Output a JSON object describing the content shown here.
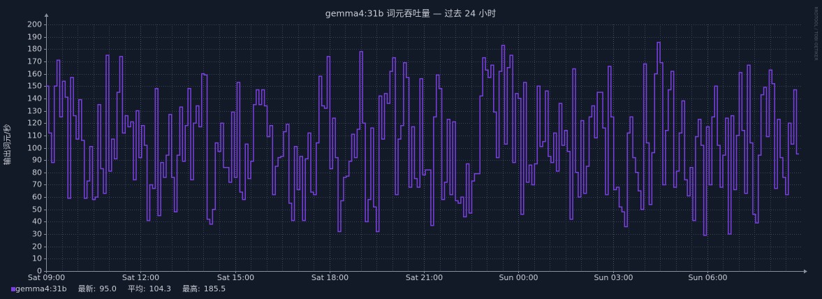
{
  "chart_data": {
    "type": "line",
    "title": "gemma4:31b 词元吞吐量 — 过去 24 小时",
    "y_label": "输出词元/秒",
    "watermark": "RRDTOOL / TOBI OETIKER",
    "xlim": [
      0,
      1440
    ],
    "xticks": [
      {
        "value": 0,
        "label": "Sat 09:00"
      },
      {
        "value": 180,
        "label": "Sat 12:00"
      },
      {
        "value": 360,
        "label": "Sat 15:00"
      },
      {
        "value": 540,
        "label": "Sat 18:00"
      },
      {
        "value": 720,
        "label": "Sat 21:00"
      },
      {
        "value": 900,
        "label": "Sun 00:00"
      },
      {
        "value": 1080,
        "label": "Sun 03:00"
      },
      {
        "value": 1260,
        "label": "Sun 06:00"
      }
    ],
    "ylim": [
      0,
      200
    ],
    "yticks": [
      0,
      10,
      20,
      30,
      40,
      50,
      60,
      70,
      80,
      90,
      100,
      110,
      120,
      130,
      140,
      150,
      160,
      170,
      180,
      190,
      200
    ],
    "grid": true,
    "step": true,
    "x": [
      0,
      5.2,
      10.4,
      15.6,
      20.8,
      26,
      31.2,
      36.4,
      41.6,
      46.8,
      52,
      57.2,
      62.4,
      67.6,
      72.8,
      78,
      83.2,
      88.4,
      93.6,
      98.8,
      104,
      109.2,
      114.4,
      119.6,
      124.8,
      130,
      135.2,
      140.4,
      145.6,
      150.8,
      156,
      161.2,
      166.4,
      171.6,
      176.8,
      182,
      187.2,
      192.4,
      197.6,
      202.8,
      208,
      213.2,
      218.4,
      223.6,
      228.8,
      234,
      239.2,
      244.4,
      249.6,
      254.8,
      260,
      265.2,
      270.4,
      275.6,
      280.8,
      286,
      291.2,
      296.4,
      301.6,
      306.8,
      312,
      317.2,
      322.4,
      327.6,
      332.8,
      338,
      343.2,
      348.4,
      353.6,
      358.8,
      364,
      369.2,
      374.4,
      379.6,
      384.8,
      390,
      395.2,
      400.4,
      405.6,
      410.8,
      416,
      421.2,
      426.4,
      431.6,
      436.8,
      442,
      447.2,
      452.4,
      457.6,
      462.8,
      468,
      473.2,
      478.4,
      483.6,
      488.8,
      494,
      499.2,
      504.4,
      509.6,
      514.8,
      520,
      525.2,
      530.4,
      535.6,
      540.8,
      546,
      551.2,
      556.4,
      561.6,
      566.8,
      572,
      577.2,
      582.4,
      587.6,
      592.8,
      598,
      603.2,
      608.4,
      613.6,
      618.8,
      624,
      629.2,
      634.4,
      639.6,
      644.8,
      650,
      655.2,
      660.4,
      665.6,
      670.8,
      676,
      681.2,
      686.4,
      691.6,
      696.8,
      702,
      707.2,
      712.4,
      717.6,
      722.8,
      728,
      733.2,
      738.4,
      743.6,
      748.8,
      754,
      759.2,
      764.4,
      769.6,
      774.8,
      780,
      785.2,
      790.4,
      795.6,
      800.8,
      806,
      811.2,
      816.4,
      821.6,
      826.8,
      832,
      837.2,
      842.4,
      847.6,
      852.8,
      858,
      863.2,
      868.4,
      873.6,
      878.8,
      884,
      889.2,
      894.4,
      899.6,
      904.8,
      910,
      915.2,
      920.4,
      925.6,
      930.8,
      936,
      941.2,
      946.4,
      951.6,
      956.8,
      962,
      967.2,
      972.4,
      977.6,
      982.8,
      988,
      993.2,
      998.4,
      1003.6,
      1008.8,
      1014,
      1019.2,
      1024.4,
      1029.6,
      1034.8,
      1040,
      1045.2,
      1050.4,
      1055.6,
      1060.8,
      1066,
      1071.2,
      1076.4,
      1081.6,
      1086.8,
      1092,
      1097.2,
      1102.4,
      1107.6,
      1112.8,
      1118,
      1123.2,
      1128.4,
      1133.6,
      1138.8,
      1144,
      1149.2,
      1154.4,
      1159.6,
      1164.8,
      1170,
      1175.2,
      1180.4,
      1185.6,
      1190.8,
      1196,
      1201.2,
      1206.4,
      1211.6,
      1216.8,
      1222,
      1227.2,
      1232.4,
      1237.6,
      1242.8,
      1248,
      1253.2,
      1258.4,
      1263.6,
      1268.8,
      1274,
      1279.2,
      1284.4,
      1289.6,
      1294.8,
      1300,
      1305.2,
      1310.4,
      1315.6,
      1320.8,
      1326,
      1331.2,
      1336.4,
      1341.6,
      1346.8,
      1352,
      1357.2,
      1362.4,
      1367.6,
      1372.8,
      1378,
      1383.2,
      1388.4,
      1393.6,
      1398.8,
      1404,
      1409.2,
      1414.4,
      1419.6,
      1424.8,
      1430
    ],
    "series": [
      {
        "name": "gemma4:31b",
        "color": "#7b3fe4",
        "values": [
          150,
          112,
          88,
          150,
          171,
          125,
          154,
          141,
          59,
          157,
          126,
          107,
          139,
          106,
          59,
          73,
          101,
          58,
          60,
          135,
          83,
          63,
          175,
          81,
          107,
          91,
          145,
          174,
          112,
          126,
          117,
          121,
          74,
          130,
          92,
          118,
          102,
          41,
          70,
          67,
          148,
          45,
          88,
          76,
          94,
          127,
          76,
          48,
          94,
          133,
          89,
          118,
          148,
          74,
          120,
          134,
          117,
          160,
          159,
          42,
          38,
          50,
          104,
          97,
          120,
          84,
          84,
          72,
          129,
          76,
          153,
          64,
          58,
          103,
          75,
          89,
          135,
          147,
          135,
          147,
          134,
          109,
          118,
          62,
          85,
          92,
          93,
          113,
          119,
          55,
          41,
          101,
          66,
          93,
          41,
          91,
          112,
          64,
          62,
          104,
          158,
          134,
          132,
          174,
          83,
          124,
          92,
          32,
          57,
          76,
          77,
          89,
          111,
          92,
          115,
          178,
          120,
          40,
          58,
          116,
          52,
          32,
          142,
          107,
          144,
          136,
          162,
          173,
          62,
          107,
          118,
          169,
          157,
          68,
          117,
          75,
          68,
          156,
          78,
          82,
          82,
          37,
          125,
          159,
          148,
          58,
          72,
          123,
          62,
          121,
          57,
          55,
          60,
          44,
          87,
          47,
          73,
          79,
          79,
          142,
          173,
          163,
          157,
          167,
          129,
          92,
          162,
          183,
          103,
          165,
          175,
          88,
          144,
          140,
          46,
          153,
          72,
          86,
          70,
          87,
          150,
          101,
          105,
          146,
          93,
          88,
          112,
          81,
          136,
          102,
          114,
          97,
          42,
          164,
          80,
          60,
          122,
          63,
          85,
          125,
          134,
          108,
          145,
          145,
          116,
          62,
          166,
          125,
          66,
          68,
          52,
          48,
          36,
          112,
          125,
          92,
          80,
          65,
          50,
          168,
          104,
          54,
          96,
          160,
          185.5,
          169,
          70,
          114,
          147,
          162,
          68,
          81,
          112,
          138,
          74,
          61,
          84,
          41,
          109,
          123,
          102,
          29,
          117,
          70,
          125,
          150,
          102,
          68,
          94,
          124,
          30,
          126,
          66,
          110,
          161,
          114,
          63,
          167,
          104,
          46,
          39,
          94,
          143,
          149,
          109,
          163,
          152,
          67,
          123,
          92,
          76,
          62,
          120,
          103,
          147,
          95
        ],
        "stats": [
          {
            "label": "最新:",
            "value": "95.0"
          },
          {
            "label": "平均:",
            "value": "104.3"
          },
          {
            "label": "最高:",
            "value": "185.5"
          }
        ]
      }
    ]
  }
}
